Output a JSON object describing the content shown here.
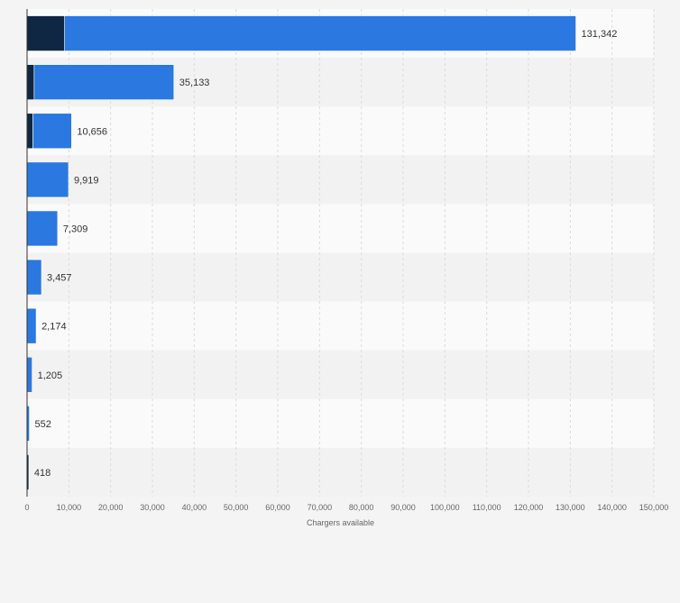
{
  "chart_data": {
    "type": "bar",
    "orientation": "horizontal",
    "stacked": true,
    "categories": [
      "",
      "",
      "",
      "",
      "",
      "",
      "",
      "",
      "",
      ""
    ],
    "series": [
      {
        "color": "#0f2742",
        "values": [
          9000,
          1700,
          1400,
          0,
          0,
          0,
          0,
          0,
          0,
          418
        ]
      },
      {
        "color": "#2a78e0",
        "values": [
          122342,
          33433,
          9256,
          9919,
          7309,
          3457,
          2174,
          1205,
          552,
          0
        ]
      }
    ],
    "totals": [
      131342,
      35133,
      10656,
      9919,
      7309,
      3457,
      2174,
      1205,
      552,
      418
    ],
    "total_labels": [
      "131,342",
      "35,133",
      "10,656",
      "9,919",
      "7,309",
      "3,457",
      "2,174",
      "1,205",
      "552",
      "418"
    ],
    "xlabel": "Chargers available",
    "xlim": [
      0,
      150000
    ],
    "xticks": [
      0,
      10000,
      20000,
      30000,
      40000,
      50000,
      60000,
      70000,
      80000,
      90000,
      100000,
      110000,
      120000,
      130000,
      140000,
      150000
    ],
    "xtick_labels": [
      "0",
      "10,000",
      "20,000",
      "30,000",
      "40,000",
      "50,000",
      "60,000",
      "70,000",
      "80,000",
      "90,000",
      "100,000",
      "110,000",
      "120,000",
      "130,000",
      "140,000",
      "150,000"
    ],
    "grid": true,
    "legend": "none",
    "colors": {
      "band_light": "#fafafa",
      "band_dark": "#f2f2f2",
      "grid": "#dcdcdc",
      "axis": "#333333"
    }
  }
}
